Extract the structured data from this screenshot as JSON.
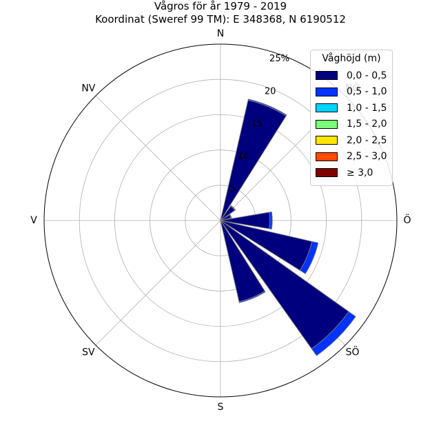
{
  "title": {
    "line1": "Vågros för år 1979 - 2019",
    "line2": "Koordinat (Sweref 99 TM): E 348368, N 6190512"
  },
  "chart_data": {
    "type": "bar",
    "subtype": "polar-stacked-wind-rose",
    "direction_labels": [
      "N",
      "NÖ",
      "Ö",
      "SÖ",
      "S",
      "SV",
      "V",
      "NV"
    ],
    "sector_centers_deg": [
      0,
      22.5,
      45,
      67.5,
      90,
      112.5,
      135,
      157.5,
      180,
      202.5,
      225,
      247.5,
      270,
      292.5,
      315,
      337.5
    ],
    "radial_ticks": [
      5,
      10,
      15,
      20
    ],
    "radial_max_label": "25%",
    "rmax": 25,
    "grid": true,
    "legend_title": "Våghöjd (m)",
    "legend_position": "top-right",
    "series": [
      {
        "name": "0,0 - 0,5",
        "color": "#00007f",
        "values": [
          0,
          17.5,
          2.5,
          1.5,
          7.0,
          13.3,
          22.3,
          11.8,
          0,
          0,
          0,
          0,
          0,
          0,
          0,
          0
        ]
      },
      {
        "name": "0,5 - 1,0",
        "color": "#0033ff",
        "values": [
          0,
          0.15,
          0.1,
          0.1,
          0.35,
          0.9,
          1.2,
          0.15,
          0,
          0,
          0,
          0,
          0,
          0,
          0,
          0
        ]
      },
      {
        "name": "1,0 - 1,5",
        "color": "#00d4ff",
        "values": [
          0,
          0,
          0,
          0,
          0,
          0,
          0,
          0,
          0,
          0,
          0,
          0,
          0,
          0,
          0,
          0
        ]
      },
      {
        "name": "1,5 - 2,0",
        "color": "#7cff79",
        "values": [
          0,
          0,
          0,
          0,
          0,
          0,
          0,
          0,
          0,
          0,
          0,
          0,
          0,
          0,
          0,
          0
        ]
      },
      {
        "name": "2,0 - 2,5",
        "color": "#ffe600",
        "values": [
          0,
          0,
          0,
          0,
          0,
          0,
          0,
          0,
          0,
          0,
          0,
          0,
          0,
          0,
          0,
          0
        ]
      },
      {
        "name": "2,5 - 3,0",
        "color": "#ff4a00",
        "values": [
          0,
          0,
          0,
          0,
          0,
          0,
          0,
          0,
          0,
          0,
          0,
          0,
          0,
          0,
          0,
          0
        ]
      },
      {
        "name": "≥ 3,0",
        "color": "#7f0000",
        "values": [
          0,
          0,
          0,
          0,
          0,
          0,
          0,
          0,
          0,
          0,
          0,
          0,
          0,
          0,
          0,
          0
        ]
      }
    ]
  }
}
